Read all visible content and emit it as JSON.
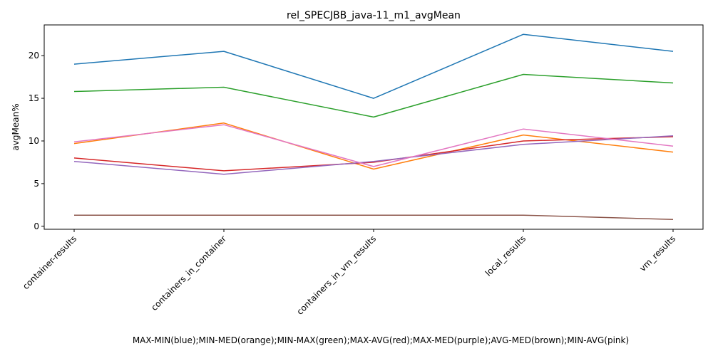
{
  "chart_data": {
    "type": "line",
    "title": "rel_SPECJBB_java-11_m1_avgMean",
    "xlabel": "MAX-MIN(blue);MIN-MED(orange);MIN-MAX(green);MAX-AVG(red);MAX-MED(purple);AVG-MED(brown);MIN-AVG(pink)",
    "ylabel": "avgMean%",
    "categories": [
      "container-results",
      "containers_in_container",
      "containers_in_vm_results",
      "local_results",
      "vm_results"
    ],
    "ylim": [
      -0.35,
      23.6
    ],
    "yticks": [
      0,
      5,
      10,
      15,
      20
    ],
    "grid": false,
    "series": [
      {
        "color": "#1f77b4",
        "values": [
          19.0,
          20.5,
          15.0,
          22.5,
          20.5
        ]
      },
      {
        "color": "#ff7f0e",
        "values": [
          9.7,
          12.1,
          6.7,
          10.7,
          8.7
        ]
      },
      {
        "color": "#2ca02c",
        "values": [
          15.8,
          16.3,
          12.8,
          17.8,
          16.8
        ]
      },
      {
        "color": "#d62728",
        "values": [
          8.0,
          6.5,
          7.5,
          10.0,
          10.5
        ]
      },
      {
        "color": "#9467bd",
        "values": [
          7.6,
          6.1,
          7.6,
          9.6,
          10.6
        ]
      },
      {
        "color": "#8c564b",
        "values": [
          1.3,
          1.3,
          1.3,
          1.3,
          0.8
        ]
      },
      {
        "color": "#e377c2",
        "values": [
          9.9,
          11.9,
          7.0,
          11.4,
          9.4
        ]
      }
    ]
  }
}
